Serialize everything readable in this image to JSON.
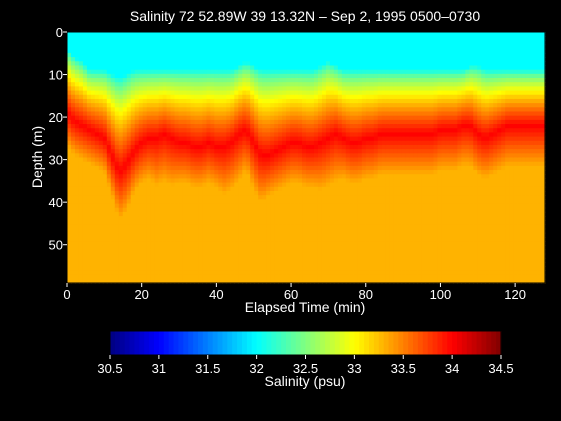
{
  "chart_data": {
    "type": "heatmap",
    "title": "Salinity  72 52.89W 39 13.32N – Sep 2, 1995  0500–0730",
    "xlabel": "Elapsed Time (min)",
    "ylabel": "Depth (m)",
    "xlim": [
      0,
      128
    ],
    "ylim": [
      0,
      59
    ],
    "y_inverted": true,
    "x_ticks": [
      "0",
      "20",
      "40",
      "60",
      "80",
      "100",
      "120"
    ],
    "x_tick_values": [
      0,
      20,
      40,
      60,
      80,
      100,
      120
    ],
    "y_ticks": [
      "0",
      "10",
      "20",
      "30",
      "40",
      "50"
    ],
    "y_tick_values": [
      0,
      10,
      20,
      30,
      40,
      50
    ],
    "colorbar": {
      "label": "Salinity (psu)",
      "range": [
        30.5,
        34.5
      ],
      "ticks": [
        "30.5",
        "31",
        "31.5",
        "32",
        "32.5",
        "33",
        "33.5",
        "34",
        "34.5"
      ],
      "tick_values": [
        30.5,
        31,
        31.5,
        32,
        32.5,
        33,
        33.5,
        34,
        34.5
      ],
      "colormap": "jet"
    },
    "grid": false,
    "x_samples": [
      0,
      2,
      4,
      6,
      8,
      10,
      12,
      14,
      16,
      18,
      20,
      22,
      24,
      26,
      28,
      30,
      32,
      34,
      36,
      38,
      40,
      42,
      44,
      46,
      48,
      50,
      52,
      54,
      56,
      58,
      60,
      62,
      64,
      66,
      68,
      70,
      72,
      74,
      76,
      78,
      80,
      82,
      84,
      86,
      88,
      90,
      92,
      94,
      96,
      98,
      100,
      102,
      104,
      106,
      108,
      110,
      112,
      114,
      116,
      118,
      120,
      122,
      124,
      126,
      128
    ],
    "layers": {
      "mixed_layer_salinity": 32.0,
      "deep_salinity": 33.3,
      "halocline_core_salinity": 34.0,
      "mixed_layer_base_depth_m": [
        4,
        6,
        7,
        9,
        9,
        9,
        10,
        11,
        10,
        9,
        9,
        9,
        9,
        9,
        9,
        9,
        9,
        9,
        9,
        9,
        9,
        9,
        9,
        8,
        7,
        8,
        9,
        9,
        9,
        9,
        9,
        9,
        9,
        9,
        8,
        7,
        8,
        9,
        9,
        9,
        9,
        9,
        9,
        9,
        9,
        9,
        9,
        9,
        9,
        9,
        9,
        9,
        9,
        9,
        8,
        8,
        9,
        9,
        9,
        9,
        9,
        9,
        9,
        9,
        9
      ],
      "halocline_core_depth_m": [
        19,
        21,
        22,
        23,
        24,
        25,
        29,
        33,
        31,
        28,
        26,
        25,
        25,
        24,
        25,
        26,
        26,
        27,
        27,
        26,
        27,
        27,
        26,
        24,
        23,
        26,
        29,
        29,
        28,
        27,
        26,
        26,
        27,
        27,
        26,
        25,
        24,
        25,
        26,
        26,
        25,
        25,
        24,
        24,
        24,
        24,
        24,
        24,
        24,
        24,
        23,
        23,
        23,
        22,
        22,
        24,
        25,
        24,
        23,
        22,
        22,
        22,
        22,
        22,
        22
      ],
      "halocline_core_thickness_m": [
        5,
        5,
        5,
        5,
        5,
        5,
        6,
        7,
        7,
        6,
        6,
        6,
        7,
        7,
        7,
        6,
        6,
        6,
        6,
        6,
        6,
        7,
        7,
        7,
        6,
        7,
        7,
        6,
        6,
        6,
        6,
        6,
        6,
        6,
        7,
        7,
        7,
        6,
        6,
        6,
        6,
        6,
        6,
        6,
        6,
        6,
        6,
        6,
        6,
        6,
        6,
        6,
        6,
        6,
        6,
        6,
        6,
        6,
        6,
        6,
        6,
        6,
        6,
        6,
        6
      ]
    }
  }
}
